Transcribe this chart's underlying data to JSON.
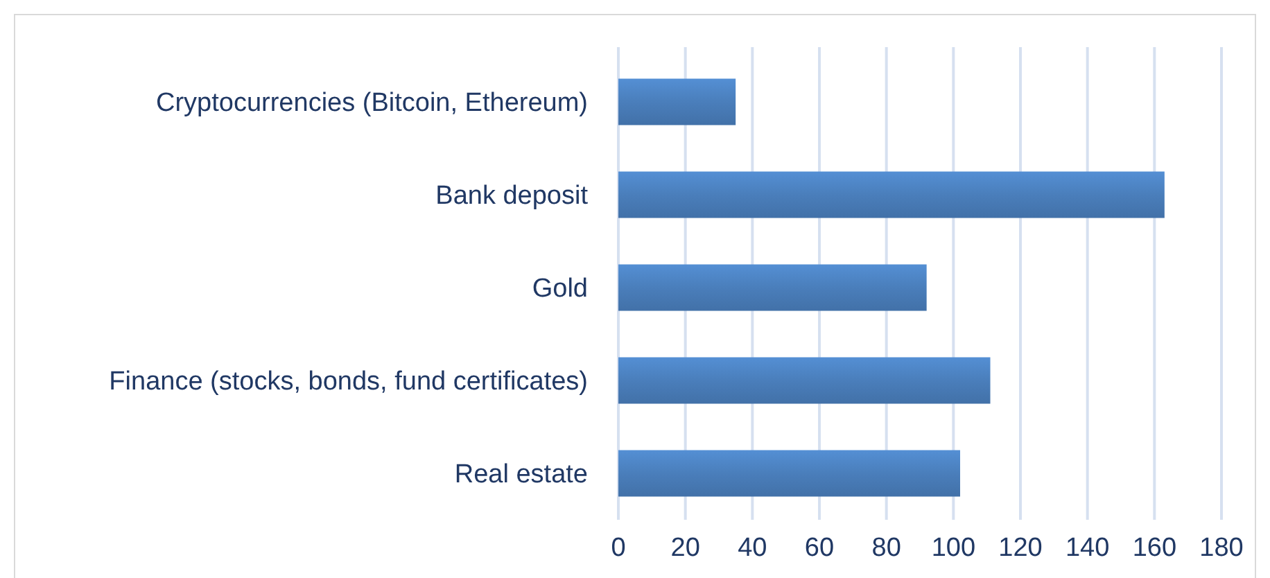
{
  "chart_data": {
    "type": "bar",
    "orientation": "horizontal",
    "categories": [
      "Cryptocurrencies (Bitcoin, Ethereum)",
      "Bank deposit",
      "Gold",
      "Finance (stocks, bonds, fund certificates)",
      "Real estate"
    ],
    "values": [
      35,
      163,
      92,
      111,
      102
    ],
    "color": "#4a7ebb",
    "xlim": [
      0,
      180
    ],
    "xticks": [
      0,
      20,
      40,
      60,
      80,
      100,
      120,
      140,
      160,
      180
    ],
    "grid": "x"
  }
}
